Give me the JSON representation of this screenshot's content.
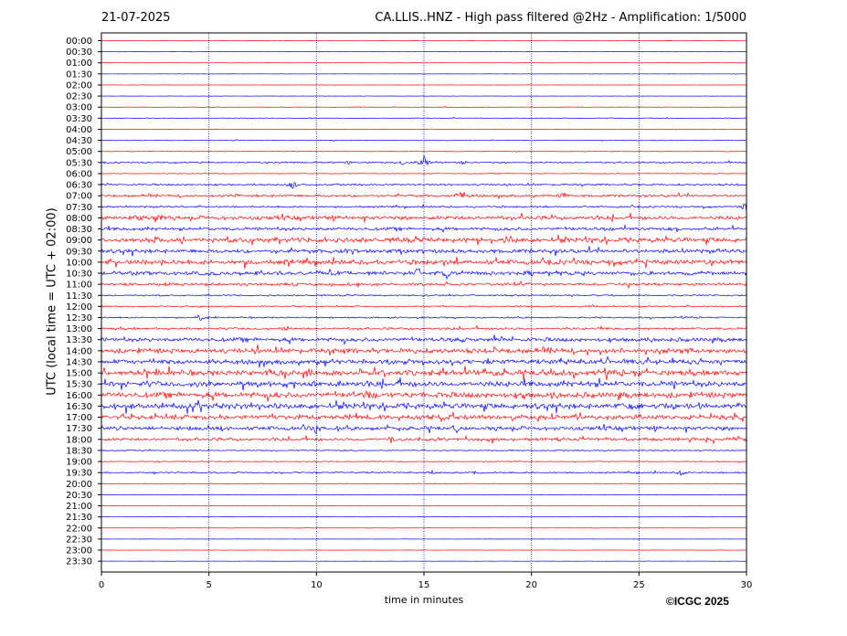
{
  "header": {
    "date": "21-07-2025",
    "title": "CA.LLIS..HNZ - High pass filtered @2Hz - Amplification: 1/5000"
  },
  "footer": {
    "copyright": "©ICGC 2025"
  },
  "chart_data": {
    "type": "line",
    "subtype": "helicorder",
    "xlabel": "time in minutes",
    "ylabel": "UTC (local time = UTC + 02:00)",
    "xlim": [
      0,
      30
    ],
    "x_ticks": [
      0,
      5,
      10,
      15,
      20,
      25,
      30
    ],
    "grid": "vertical dotted at 5-minute intervals",
    "colors": {
      "even_trace": "#ff0000",
      "odd_trace": "#0000ff",
      "grid": "#000080"
    },
    "rows": [
      "00:00",
      "00:30",
      "01:00",
      "01:30",
      "02:00",
      "02:30",
      "03:00",
      "03:30",
      "04:00",
      "04:30",
      "05:00",
      "05:30",
      "06:00",
      "06:30",
      "07:00",
      "07:30",
      "08:00",
      "08:30",
      "09:00",
      "09:30",
      "10:00",
      "10:30",
      "11:00",
      "11:30",
      "12:00",
      "12:30",
      "13:00",
      "13:30",
      "14:00",
      "14:30",
      "15:00",
      "15:30",
      "16:00",
      "16:30",
      "17:00",
      "17:30",
      "18:00",
      "18:30",
      "19:00",
      "19:30",
      "20:00",
      "20:30",
      "21:00",
      "21:30",
      "22:00",
      "22:30",
      "23:00",
      "23:30"
    ],
    "noise_level": [
      0.2,
      0.2,
      0.2,
      0.2,
      0.2,
      0.2,
      0.3,
      0.5,
      0.5,
      0.5,
      0.5,
      1.0,
      0.5,
      1.2,
      1.6,
      1.2,
      2.5,
      2.0,
      3.0,
      2.5,
      3.0,
      2.5,
      1.8,
      1.0,
      1.0,
      1.0,
      1.5,
      2.5,
      3.0,
      3.0,
      3.5,
      3.5,
      3.5,
      3.5,
      3.0,
      2.5,
      2.0,
      0.8,
      0.6,
      1.0,
      0.4,
      0.3,
      0.2,
      0.2,
      0.2,
      0.2,
      0.2,
      0.2
    ],
    "events": [
      {
        "row": "03:00",
        "minute": 12.0,
        "amplitude": 1.0
      },
      {
        "row": "03:00",
        "minute": 16.0,
        "amplitude": 1.0
      },
      {
        "row": "04:30",
        "minute": 6.2,
        "amplitude": 1.5
      },
      {
        "row": "05:30",
        "minute": 11.5,
        "amplitude": 3.0
      },
      {
        "row": "05:30",
        "minute": 14.0,
        "amplitude": 3.0
      },
      {
        "row": "05:30",
        "minute": 15.0,
        "amplitude": 8.0
      },
      {
        "row": "05:30",
        "minute": 16.8,
        "amplitude": 3.0
      },
      {
        "row": "06:30",
        "minute": 8.9,
        "amplitude": 5.0
      },
      {
        "row": "07:00",
        "minute": 6.2,
        "amplitude": 4.0
      },
      {
        "row": "07:00",
        "minute": 16.8,
        "amplitude": 8.0
      },
      {
        "row": "07:00",
        "minute": 21.5,
        "amplitude": 5.0
      },
      {
        "row": "07:30",
        "minute": 30.0,
        "amplitude": 8.0
      },
      {
        "row": "08:00",
        "minute": 1.6,
        "amplitude": 8.0
      },
      {
        "row": "08:00",
        "minute": 2.7,
        "amplitude": 8.0
      },
      {
        "row": "08:30",
        "minute": 24.2,
        "amplitude": 6.0
      },
      {
        "row": "09:00",
        "minute": 2.6,
        "amplitude": 8.0
      },
      {
        "row": "09:00",
        "minute": 18.8,
        "amplitude": 6.0
      },
      {
        "row": "10:30",
        "minute": 14.7,
        "amplitude": 8.0
      },
      {
        "row": "10:30",
        "minute": 16.1,
        "amplitude": 8.0
      },
      {
        "row": "12:00",
        "minute": 22.8,
        "amplitude": 4.0
      },
      {
        "row": "12:30",
        "minute": 4.6,
        "amplitude": 4.0
      },
      {
        "row": "13:00",
        "minute": 8.6,
        "amplitude": 5.0
      },
      {
        "row": "14:00",
        "minute": 4.2,
        "amplitude": 5.0
      },
      {
        "row": "15:00",
        "minute": 7.8,
        "amplitude": 6.0
      },
      {
        "row": "15:00",
        "minute": 17.8,
        "amplitude": 6.0
      },
      {
        "row": "15:30",
        "minute": 11.0,
        "amplitude": 6.0
      },
      {
        "row": "16:00",
        "minute": 12.3,
        "amplitude": 7.0
      },
      {
        "row": "16:00",
        "minute": 15.0,
        "amplitude": 6.0
      },
      {
        "row": "16:30",
        "minute": 24.6,
        "amplitude": 6.0
      },
      {
        "row": "17:30",
        "minute": 5.5,
        "amplitude": 6.0
      },
      {
        "row": "17:30",
        "minute": 10.0,
        "amplitude": 7.0
      },
      {
        "row": "17:30",
        "minute": 16.5,
        "amplitude": 8.0
      },
      {
        "row": "18:00",
        "minute": 13.5,
        "amplitude": 5.0
      },
      {
        "row": "19:30",
        "minute": 15.5,
        "amplitude": 4.0
      },
      {
        "row": "19:30",
        "minute": 17.5,
        "amplitude": 4.0
      },
      {
        "row": "19:30",
        "minute": 27.0,
        "amplitude": 5.0
      }
    ]
  }
}
